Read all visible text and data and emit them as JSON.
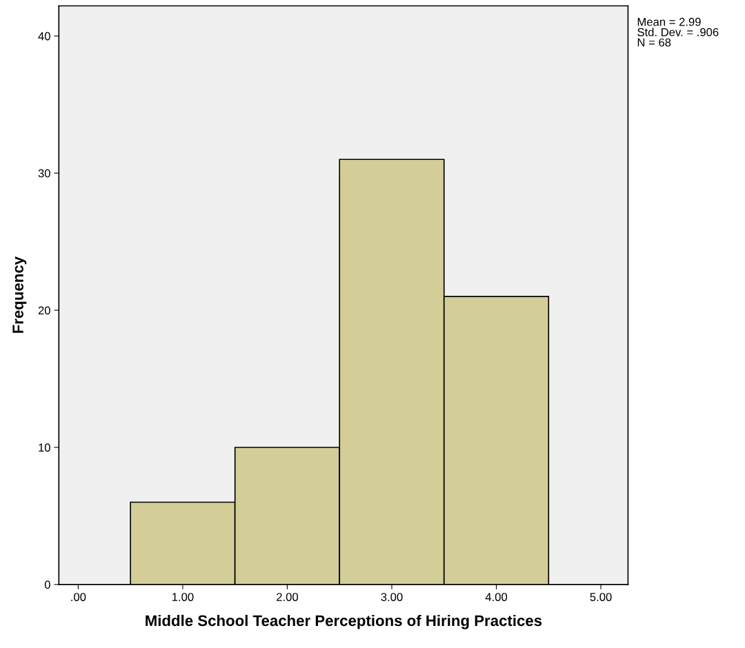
{
  "chart_data": {
    "type": "histogram",
    "bins": [
      0.5,
      1.5,
      2.5,
      3.5,
      4.5
    ],
    "values": [
      6,
      10,
      31,
      21
    ],
    "color": "#d3cd97",
    "xlabel": "Middle School Teacher Perceptions of Hiring Practices",
    "ylabel": "Frequency",
    "xlim": [
      -0.185,
      5.26
    ],
    "ylim": [
      0,
      42.2
    ],
    "xticks": [
      {
        "value": 0,
        "label": ".00"
      },
      {
        "value": 1,
        "label": "1.00"
      },
      {
        "value": 2,
        "label": "2.00"
      },
      {
        "value": 3,
        "label": "3.00"
      },
      {
        "value": 4,
        "label": "4.00"
      },
      {
        "value": 5,
        "label": "5.00"
      }
    ],
    "yticks": [
      0,
      10,
      20,
      30,
      40
    ],
    "annotations": [
      "Mean = 2.99",
      "Std. Dev. = .906",
      "N = 68"
    ],
    "grid": false
  }
}
